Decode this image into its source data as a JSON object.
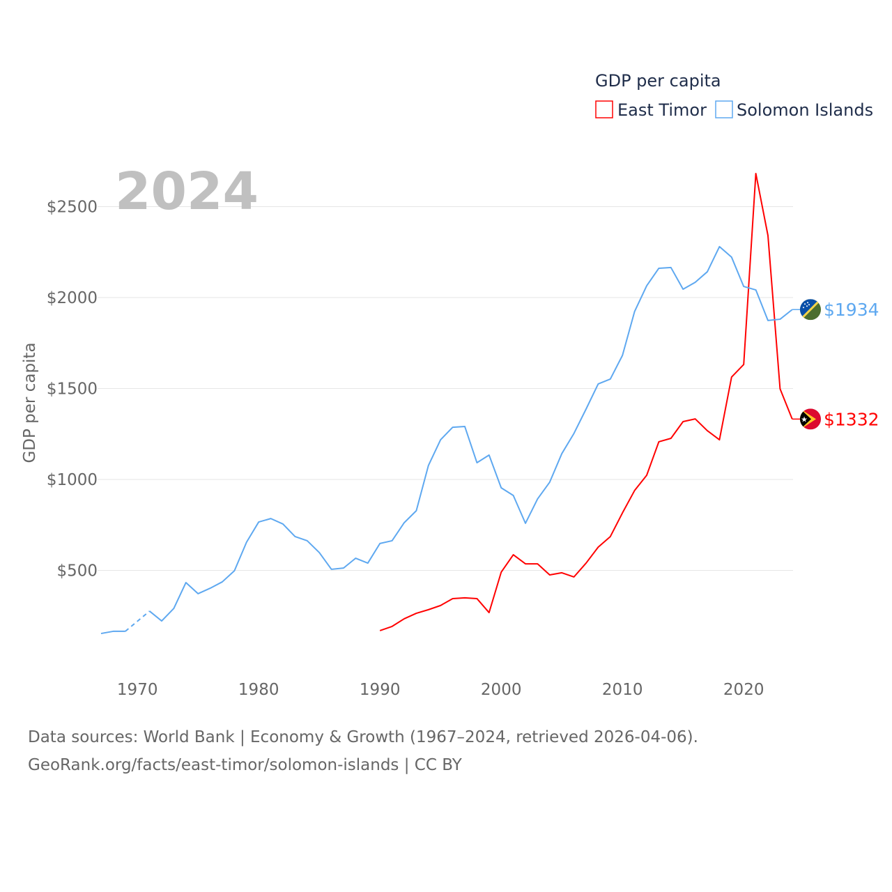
{
  "chart_data": {
    "type": "line",
    "title": "GDP per capita",
    "year_label": "2024",
    "ylabel": "GDP per capita",
    "xlabel": "",
    "xlim": [
      1967,
      2024
    ],
    "ylim": [
      0,
      2700
    ],
    "x_ticks": [
      "1970",
      "1980",
      "1990",
      "2000",
      "2010",
      "2020"
    ],
    "y_ticks": [
      {
        "v": 500,
        "label": "$500"
      },
      {
        "v": 1000,
        "label": "$1000"
      },
      {
        "v": 1500,
        "label": "$1500"
      },
      {
        "v": 2000,
        "label": "$2000"
      },
      {
        "v": 2500,
        "label": "$2500"
      }
    ],
    "grid": true,
    "legend_position": "top-right",
    "series": [
      {
        "name": "East Timor",
        "color": "#ff0000",
        "end_label": "$1332",
        "flag": "east-timor-flag",
        "x": [
          1990,
          1991,
          1992,
          1993,
          1994,
          1995,
          1996,
          1997,
          1998,
          1999,
          2000,
          2001,
          2002,
          2003,
          2004,
          2005,
          2006,
          2007,
          2008,
          2009,
          2010,
          2011,
          2012,
          2013,
          2014,
          2015,
          2016,
          2017,
          2018,
          2019,
          2020,
          2021,
          2022,
          2023,
          2024
        ],
        "values": [
          169,
          192,
          234,
          264,
          284,
          307,
          345,
          349,
          345,
          268,
          490,
          586,
          536,
          536,
          475,
          487,
          464,
          540,
          628,
          686,
          816,
          939,
          1023,
          1207,
          1226,
          1318,
          1333,
          1268,
          1218,
          1563,
          1632,
          2682,
          2341,
          1498,
          1332
        ]
      },
      {
        "name": "Solomon Islands",
        "color": "#5ea8f0",
        "end_label": "$1934",
        "flag": "solomon-islands-flag",
        "x": [
          1967,
          1968,
          1969,
          1970,
          1971,
          1972,
          1973,
          1974,
          1975,
          1976,
          1977,
          1978,
          1979,
          1980,
          1981,
          1982,
          1983,
          1984,
          1985,
          1986,
          1987,
          1988,
          1989,
          1990,
          1991,
          1992,
          1993,
          1994,
          1995,
          1996,
          1997,
          1998,
          1999,
          2000,
          2001,
          2002,
          2003,
          2004,
          2005,
          2006,
          2007,
          2008,
          2009,
          2010,
          2011,
          2012,
          2013,
          2014,
          2015,
          2016,
          2017,
          2018,
          2019,
          2020,
          2021,
          2022,
          2023,
          2024
        ],
        "values": [
          153,
          165,
          165,
          null,
          276,
          222,
          291,
          433,
          372,
          402,
          437,
          498,
          655,
          766,
          785,
          755,
          686,
          663,
          598,
          506,
          513,
          567,
          540,
          648,
          663,
          762,
          828,
          1077,
          1218,
          1287,
          1291,
          1092,
          1134,
          954,
          912,
          759,
          893,
          985,
          1142,
          1253,
          1387,
          1525,
          1552,
          1682,
          1923,
          2065,
          2161,
          2165,
          2046,
          2084,
          2142,
          2280,
          2222,
          2061,
          2042,
          1874,
          1881,
          1934
        ]
      }
    ]
  },
  "footer": {
    "line1": "Data sources: World Bank | Economy & Growth (1967–2024, retrieved 2026-04-06).",
    "line2": "GeoRank.org/facts/east-timor/solomon-islands | CC BY"
  }
}
